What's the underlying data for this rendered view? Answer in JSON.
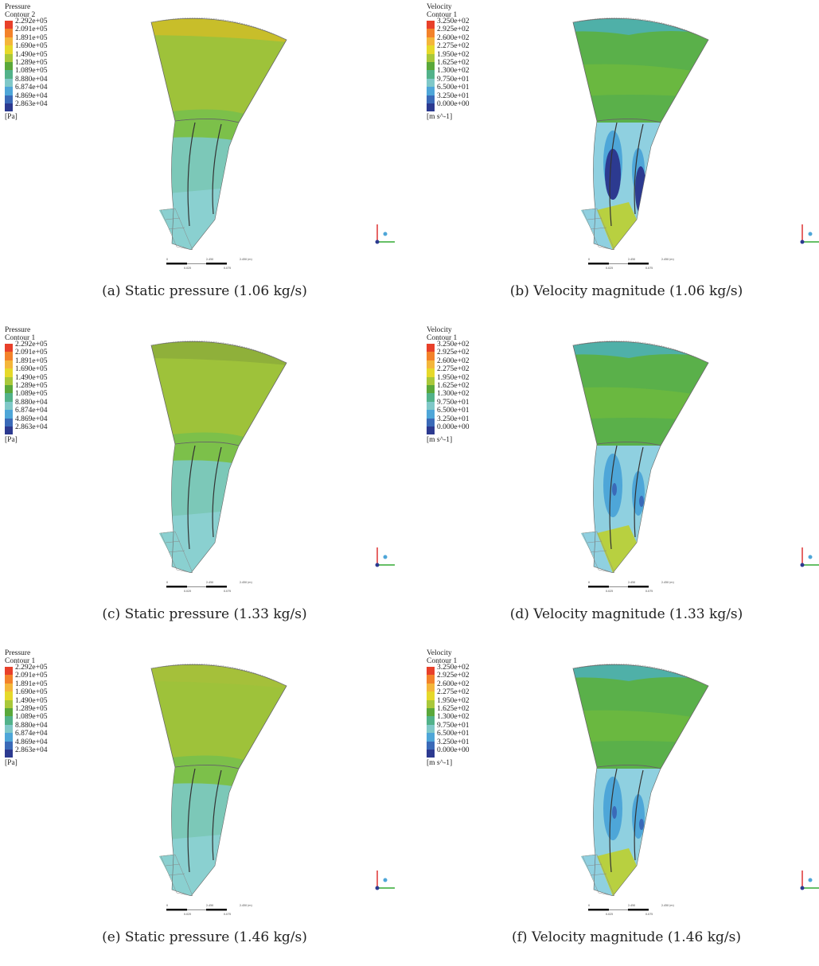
{
  "figure": {
    "panels": [
      {
        "id": "a",
        "kind": "pressure",
        "caption": "(a)  Static pressure (1.06 kg/s)",
        "legend_title": "Pressure\nContour 2"
      },
      {
        "id": "b",
        "kind": "velocity",
        "caption": "(b)  Velocity magnitude (1.06 kg/s)",
        "legend_title": "Velocity\nContour 1"
      },
      {
        "id": "c",
        "kind": "pressure",
        "caption": "(c)  Static pressure (1.33 kg/s)",
        "legend_title": "Pressure\nContour 1"
      },
      {
        "id": "d",
        "kind": "velocity",
        "caption": "(d)  Velocity magnitude (1.33 kg/s)",
        "legend_title": "Velocity\nContour 1"
      },
      {
        "id": "e",
        "kind": "pressure",
        "caption": "(e)  Static pressure (1.46 kg/s)",
        "legend_title": "Pressure\nContour 1"
      },
      {
        "id": "f",
        "kind": "velocity",
        "caption": "(f)  Velocity magnitude (1.46 kg/s)",
        "legend_title": "Velocity\nContour 1"
      }
    ],
    "pressure_levels": [
      "2.292e+05",
      "2.091e+05",
      "1.891e+05",
      "1.690e+05",
      "1.490e+05",
      "1.289e+05",
      "1.089e+05",
      "8.880e+04",
      "6.874e+04",
      "4.869e+04",
      "2.863e+04"
    ],
    "pressure_unit": "[Pa]",
    "velocity_levels": [
      "3.250e+02",
      "2.925e+02",
      "2.600e+02",
      "2.275e+02",
      "1.950e+02",
      "1.625e+02",
      "1.300e+02",
      "9.750e+01",
      "6.500e+01",
      "3.250e+01",
      "0.000e+00"
    ],
    "velocity_unit": "[m s^-1]",
    "colormap": [
      "#e8402a",
      "#f3822a",
      "#f4b63a",
      "#e6d92a",
      "#a9c83a",
      "#5aa83a",
      "#52b28a",
      "#7fc8c8",
      "#4ea6d8",
      "#3a6ab8",
      "#2c3a90"
    ],
    "scale_labels": {
      "a": "0",
      "b": "2.450",
      "c": "0.025",
      "d": "0.075",
      "e": "2.450 (m)"
    }
  }
}
